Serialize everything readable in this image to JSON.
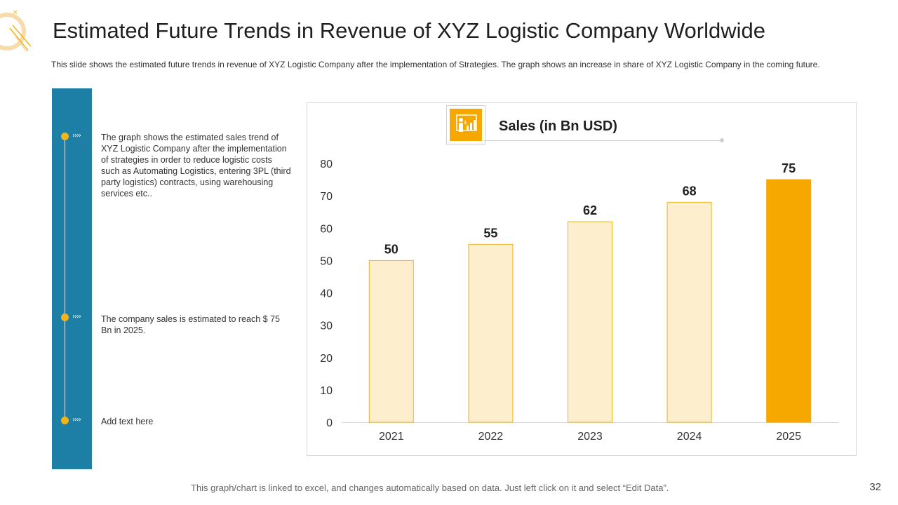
{
  "title": "Estimated Future Trends in Revenue of XYZ Logistic Company Worldwide",
  "subtitle": "This slide shows the estimated future trends in revenue  of XYZ  Logistic Company after the implementation  of Strategies. The graph  shows an increase in share of XYZ Logistic Company in the coming future.",
  "timeline": {
    "items": [
      {
        "arrow": "››››",
        "text": "The graph  shows the estimated sales trend of XYZ Logistic Company  after the implementation  of strategies in order to reduce logistic costs such as Automating Logistics, entering 3PL (third party logistics) contracts, using warehousing  services etc.."
      },
      {
        "arrow": "››››",
        "text": "The company sales is estimated to reach $ 75 Bn in 2025."
      },
      {
        "arrow": "››››",
        "text": "Add text here"
      }
    ]
  },
  "chart_icon": "presentation-growth-icon",
  "footer": "This graph/chart is linked to excel,  and changes automatically based on data.  Just left click on it and select “Edit Data”.",
  "page_number": "32",
  "colors": {
    "accent": "#f7a800",
    "bar_light": "#fdefcd",
    "bar_border": "#f2b418",
    "timeline_blue": "#1e7fa6"
  },
  "chart_data": {
    "type": "bar",
    "title": "Sales (in Bn USD)",
    "categories": [
      "2021",
      "2022",
      "2023",
      "2024",
      "2025"
    ],
    "values": [
      50,
      55,
      62,
      68,
      75
    ],
    "highlight_index": 4,
    "ylim": [
      0,
      80
    ],
    "yticks": [
      0,
      10,
      20,
      30,
      40,
      50,
      60,
      70,
      80
    ],
    "xlabel": "",
    "ylabel": "",
    "grid": false,
    "data_labels": true
  }
}
